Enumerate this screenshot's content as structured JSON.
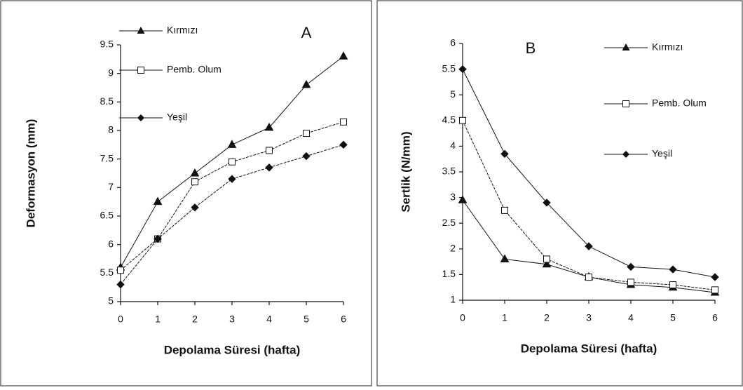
{
  "chart_data": [
    {
      "type": "line",
      "title": "A",
      "y_label": "Deformasyon (mm)",
      "x_label": "Depolama Süresi (hafta)",
      "x": [
        0,
        1,
        2,
        3,
        4,
        5,
        6
      ],
      "xlim": [
        0,
        6
      ],
      "xticks": [
        0,
        1,
        2,
        3,
        4,
        5,
        6
      ],
      "ylim": [
        5,
        9.5
      ],
      "yticks": [
        5,
        5.5,
        6,
        6.5,
        7,
        7.5,
        8,
        8.5,
        9,
        9.5
      ],
      "series": [
        {
          "name": "Kırmızı",
          "color": "#111111",
          "marker": "triangle",
          "values": [
            5.6,
            6.75,
            7.25,
            7.75,
            8.05,
            8.8,
            9.3
          ]
        },
        {
          "name": "Pemb. Olum",
          "color": "#111111",
          "marker": "square",
          "values": [
            5.55,
            6.1,
            7.1,
            7.45,
            7.65,
            7.95,
            8.15
          ]
        },
        {
          "name": "Yeşil",
          "color": "#111111",
          "marker": "diamond",
          "values": [
            5.3,
            6.1,
            6.65,
            7.15,
            7.35,
            7.55,
            7.75
          ]
        }
      ]
    },
    {
      "type": "line",
      "title": "B",
      "y_label": "Sertlik (N/mm)",
      "x_label": "Depolama Süresi (hafta)",
      "x": [
        0,
        1,
        2,
        3,
        4,
        5,
        6
      ],
      "xlim": [
        0,
        6
      ],
      "xticks": [
        0,
        1,
        2,
        3,
        4,
        5,
        6
      ],
      "ylim": [
        1,
        6
      ],
      "yticks": [
        1,
        1.5,
        2,
        2.5,
        3,
        3.5,
        4,
        4.5,
        5,
        5.5,
        6
      ],
      "series": [
        {
          "name": "Kırmızı",
          "color": "#111111",
          "marker": "triangle",
          "values": [
            2.95,
            1.8,
            1.7,
            1.45,
            1.3,
            1.25,
            1.15
          ]
        },
        {
          "name": "Pemb. Olum",
          "color": "#111111",
          "marker": "square",
          "values": [
            4.5,
            2.75,
            1.8,
            1.45,
            1.35,
            1.3,
            1.2
          ]
        },
        {
          "name": "Yeşil",
          "color": "#111111",
          "marker": "diamond",
          "values": [
            5.5,
            3.85,
            2.9,
            2.05,
            1.65,
            1.6,
            1.45
          ]
        }
      ]
    }
  ]
}
